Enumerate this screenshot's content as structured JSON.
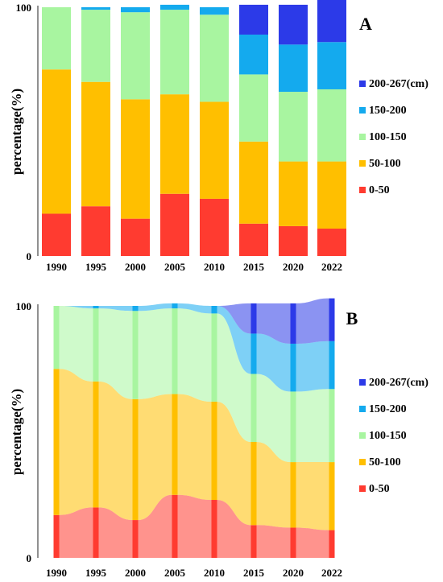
{
  "chart_data": [
    {
      "type": "bar",
      "panel_label": "A",
      "ylabel": "percentage(%)",
      "ylim": [
        0,
        100
      ],
      "y_ticks": [
        "0",
        "100"
      ],
      "categories": [
        "1990",
        "1995",
        "2000",
        "2005",
        "2010",
        "2015",
        "2020",
        "2022"
      ],
      "stacked": true,
      "series": [
        {
          "name": "0-50",
          "color": "#ff3b30",
          "values": [
            17,
            20,
            15,
            25,
            23,
            13,
            12,
            11
          ]
        },
        {
          "name": "50-100",
          "color": "#ffbf00",
          "values": [
            58,
            50,
            48,
            40,
            39,
            33,
            26,
            27
          ]
        },
        {
          "name": "100-150",
          "color": "#a8f5a0",
          "values": [
            25,
            29,
            35,
            34,
            35,
            27,
            28,
            29
          ]
        },
        {
          "name": "150-200",
          "color": "#14aaee",
          "values": [
            0,
            1,
            2,
            2,
            3,
            16,
            19,
            19
          ]
        },
        {
          "name": "200-267(cm)",
          "color": "#2c3ae8",
          "values": [
            0,
            0,
            0,
            0,
            0,
            12,
            16,
            17
          ]
        }
      ],
      "legend": "right",
      "grid": false
    },
    {
      "type": "area",
      "subtype": "sankey-style stacked flow",
      "panel_label": "B",
      "ylabel": "percentage(%)",
      "ylim": [
        0,
        100
      ],
      "y_ticks": [
        "0",
        "100"
      ],
      "categories": [
        "1990",
        "1995",
        "2000",
        "2005",
        "2010",
        "2015",
        "2020",
        "2022"
      ],
      "stacked": true,
      "series": [
        {
          "name": "0-50",
          "color": "#ff3b30",
          "values": [
            17,
            20,
            15,
            25,
            23,
            13,
            12,
            11
          ]
        },
        {
          "name": "50-100",
          "color": "#ffbf00",
          "values": [
            58,
            50,
            48,
            40,
            39,
            33,
            26,
            27
          ]
        },
        {
          "name": "100-150",
          "color": "#a8f5a0",
          "values": [
            25,
            29,
            35,
            34,
            35,
            27,
            28,
            29
          ]
        },
        {
          "name": "150-200",
          "color": "#14aaee",
          "values": [
            0,
            1,
            2,
            2,
            3,
            16,
            19,
            19
          ]
        },
        {
          "name": "200-267(cm)",
          "color": "#2c3ae8",
          "values": [
            0,
            0,
            0,
            0,
            0,
            12,
            16,
            17
          ]
        }
      ],
      "legend": "right",
      "grid": false
    }
  ]
}
